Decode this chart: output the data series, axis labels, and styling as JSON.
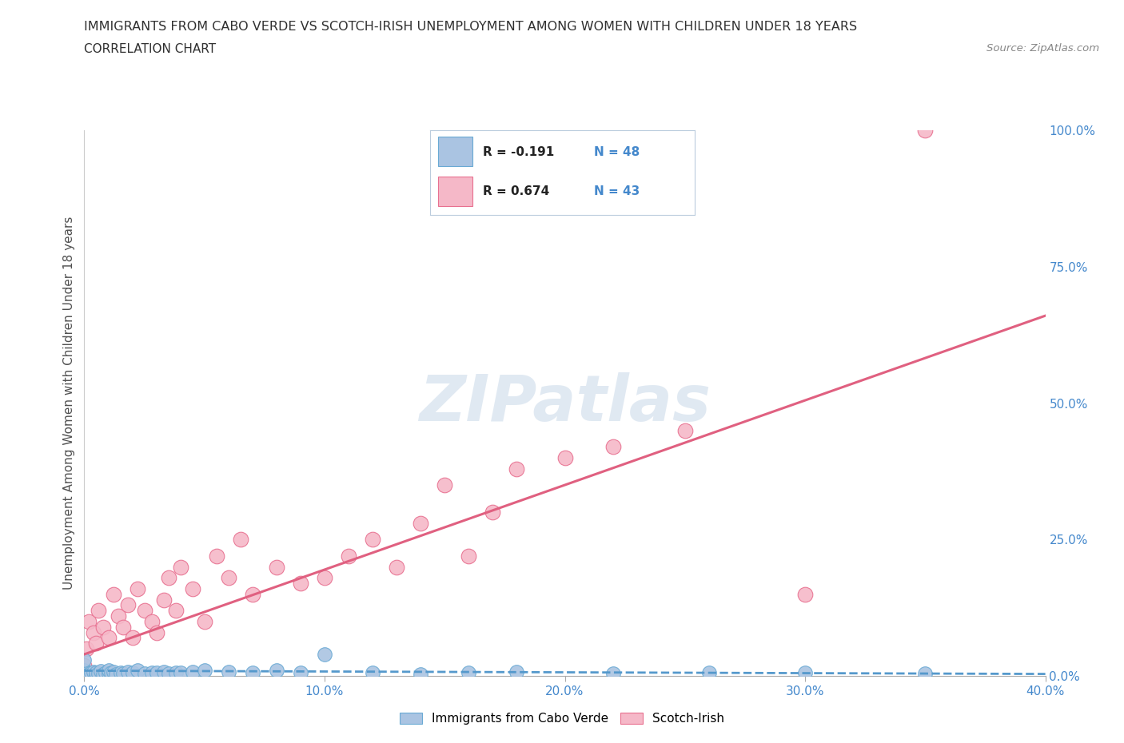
{
  "title": "IMMIGRANTS FROM CABO VERDE VS SCOTCH-IRISH UNEMPLOYMENT AMONG WOMEN WITH CHILDREN UNDER 18 YEARS",
  "subtitle": "CORRELATION CHART",
  "source": "Source: ZipAtlas.com",
  "ylabel": "Unemployment Among Women with Children Under 18 years",
  "x_min": 0.0,
  "x_max": 0.4,
  "y_min": 0.0,
  "y_max": 1.0,
  "x_ticks": [
    0.0,
    0.1,
    0.2,
    0.3,
    0.4
  ],
  "x_tick_labels": [
    "0.0%",
    "10.0%",
    "20.0%",
    "30.0%",
    "40.0%"
  ],
  "y_ticks_right": [
    0.0,
    0.25,
    0.5,
    0.75,
    1.0
  ],
  "y_tick_labels_right": [
    "0.0%",
    "25.0%",
    "50.0%",
    "75.0%",
    "100.0%"
  ],
  "series1_label": "Immigrants from Cabo Verde",
  "series1_R": -0.191,
  "series1_N": 48,
  "series1_color": "#aac4e2",
  "series1_edge_color": "#6aaad4",
  "series1_trend_color": "#5599cc",
  "series2_label": "Scotch-Irish",
  "series2_R": 0.674,
  "series2_N": 43,
  "series2_color": "#f5b8c8",
  "series2_edge_color": "#e87090",
  "series2_trend_color": "#e06080",
  "watermark": "ZIPatlas",
  "background_color": "#ffffff",
  "grid_color": "#c8d8e8",
  "title_color": "#404040",
  "tick_label_color": "#4488cc",
  "cabo_verde_x": [
    0.0,
    0.0,
    0.0,
    0.0,
    0.0,
    0.0,
    0.0,
    0.002,
    0.003,
    0.004,
    0.005,
    0.005,
    0.006,
    0.007,
    0.008,
    0.009,
    0.01,
    0.01,
    0.011,
    0.012,
    0.013,
    0.015,
    0.016,
    0.018,
    0.02,
    0.022,
    0.025,
    0.028,
    0.03,
    0.033,
    0.035,
    0.038,
    0.04,
    0.045,
    0.05,
    0.06,
    0.07,
    0.08,
    0.09,
    0.1,
    0.12,
    0.14,
    0.16,
    0.18,
    0.22,
    0.26,
    0.3,
    0.35
  ],
  "cabo_verde_y": [
    0.0,
    0.002,
    0.004,
    0.006,
    0.008,
    0.01,
    0.03,
    0.004,
    0.006,
    0.008,
    0.003,
    0.007,
    0.005,
    0.009,
    0.004,
    0.006,
    0.005,
    0.01,
    0.006,
    0.008,
    0.004,
    0.007,
    0.005,
    0.008,
    0.006,
    0.01,
    0.005,
    0.007,
    0.006,
    0.008,
    0.005,
    0.007,
    0.006,
    0.008,
    0.01,
    0.008,
    0.006,
    0.01,
    0.007,
    0.04,
    0.006,
    0.004,
    0.006,
    0.008,
    0.005,
    0.007,
    0.006,
    0.005
  ],
  "scotch_irish_x": [
    0.0,
    0.001,
    0.002,
    0.004,
    0.005,
    0.006,
    0.008,
    0.01,
    0.012,
    0.014,
    0.016,
    0.018,
    0.02,
    0.022,
    0.025,
    0.028,
    0.03,
    0.033,
    0.035,
    0.038,
    0.04,
    0.045,
    0.05,
    0.055,
    0.06,
    0.065,
    0.07,
    0.08,
    0.09,
    0.1,
    0.11,
    0.12,
    0.13,
    0.14,
    0.15,
    0.16,
    0.17,
    0.18,
    0.2,
    0.22,
    0.25,
    0.3,
    0.35
  ],
  "scotch_irish_y": [
    0.02,
    0.05,
    0.1,
    0.08,
    0.06,
    0.12,
    0.09,
    0.07,
    0.15,
    0.11,
    0.09,
    0.13,
    0.07,
    0.16,
    0.12,
    0.1,
    0.08,
    0.14,
    0.18,
    0.12,
    0.2,
    0.16,
    0.1,
    0.22,
    0.18,
    0.25,
    0.15,
    0.2,
    0.17,
    0.18,
    0.22,
    0.25,
    0.2,
    0.28,
    0.35,
    0.22,
    0.3,
    0.38,
    0.4,
    0.42,
    0.45,
    0.15,
    1.0
  ],
  "cabo_trend_slope": -0.015,
  "cabo_trend_intercept": 0.01,
  "scotch_trend_slope": 1.55,
  "scotch_trend_intercept": 0.04
}
